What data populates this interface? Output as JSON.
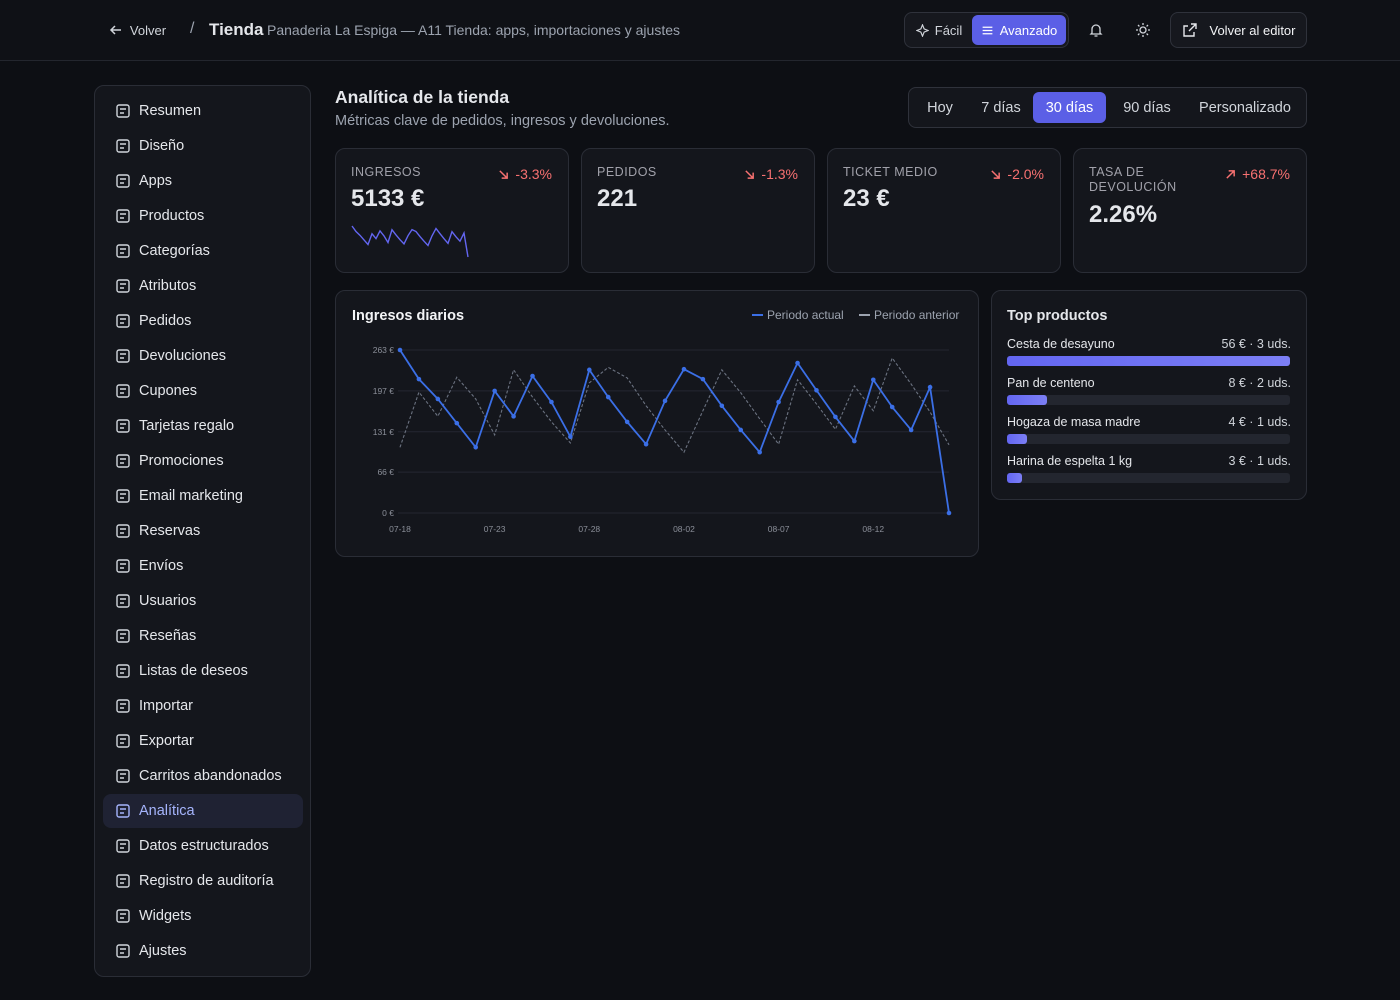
{
  "header": {
    "back": "Volver",
    "separator": "/",
    "title": "Tienda",
    "subtitle": "Panaderia La Espiga — A11 Tienda: apps, importaciones y ajustes",
    "modes": [
      "Fácil",
      "Avanzado"
    ],
    "active_mode": 1,
    "editor": "Volver al editor"
  },
  "sidebar": {
    "items": [
      "Resumen",
      "Diseño",
      "Apps",
      "Productos",
      "Categorías",
      "Atributos",
      "Pedidos",
      "Devoluciones",
      "Cupones",
      "Tarjetas regalo",
      "Promociones",
      "Email marketing",
      "Reservas",
      "Envíos",
      "Usuarios",
      "Reseñas",
      "Listas de deseos",
      "Importar",
      "Exportar",
      "Carritos abandonados",
      "Analítica",
      "Datos estructurados",
      "Registro de auditoría",
      "Widgets",
      "Ajustes"
    ],
    "active": 20
  },
  "page": {
    "title": "Analítica de la tienda",
    "subtitle": "Métricas clave de pedidos, ingresos y devoluciones.",
    "ranges": [
      "Hoy",
      "7 días",
      "30 días",
      "90 días",
      "Personalizado"
    ],
    "active_range": 2
  },
  "kpis": [
    {
      "label": "INGRESOS",
      "value": "5133 €",
      "change": "-3.3%",
      "trend": "down"
    },
    {
      "label": "PEDIDOS",
      "value": "221",
      "change": "-1.3%",
      "trend": "down"
    },
    {
      "label": "TICKET MEDIO",
      "value": "23 €",
      "change": "-2.0%",
      "trend": "down"
    },
    {
      "label": "TASA DE DEVOLUCIÓN",
      "value": "2.26%",
      "change": "+68.7%",
      "trend": "up"
    }
  ],
  "chart_data": {
    "type": "line",
    "title": "Ingresos diarios",
    "categories": [
      "07-18",
      null,
      null,
      null,
      null,
      "07-23",
      null,
      null,
      null,
      null,
      "07-28",
      null,
      null,
      null,
      null,
      "08-02",
      null,
      null,
      null,
      null,
      "08-07",
      null,
      null,
      null,
      null,
      "08-12",
      null,
      null,
      null,
      null
    ],
    "series": [
      {
        "name": "Periodo actual",
        "color": "#3b6fe6",
        "markers": true,
        "dashed": false,
        "values": [
          263,
          216,
          184,
          145,
          106,
          197,
          156,
          221,
          179,
          123,
          231,
          187,
          147,
          111,
          181,
          232,
          216,
          173,
          134,
          98,
          179,
          242,
          198,
          155,
          116,
          215,
          171,
          134,
          203,
          0
        ]
      },
      {
        "name": "Periodo anterior",
        "color": "#6b7280",
        "markers": false,
        "dashed": true,
        "values": [
          106,
          195,
          156,
          219,
          184,
          126,
          231,
          187,
          147,
          113,
          210,
          235,
          218,
          173,
          134,
          98,
          165,
          231,
          194,
          152,
          111,
          215,
          176,
          135,
          205,
          165,
          250,
          208,
          163,
          110
        ]
      }
    ],
    "ylim": [
      0,
      263
    ],
    "yticks": [
      {
        "value": 0,
        "label": "0 €"
      },
      {
        "value": 66,
        "label": "66 €"
      },
      {
        "value": 131,
        "label": "131 €"
      },
      {
        "value": 197,
        "label": "197 €"
      },
      {
        "value": 263,
        "label": "263 €"
      }
    ],
    "grid": true
  },
  "top_products": {
    "title": "Top productos",
    "color": "#7c7ff5",
    "items": [
      {
        "name": "Cesta de desayuno",
        "revenue": 56,
        "label": "56 € · 3 uds."
      },
      {
        "name": "Pan de centeno",
        "revenue": 8,
        "label": "8 € · 2 uds."
      },
      {
        "name": "Hogaza de masa madre",
        "revenue": 4,
        "label": "4 € · 1 uds."
      },
      {
        "name": "Harina de espelta 1 kg",
        "revenue": 3,
        "label": "3 € · 1 uds."
      }
    ]
  }
}
